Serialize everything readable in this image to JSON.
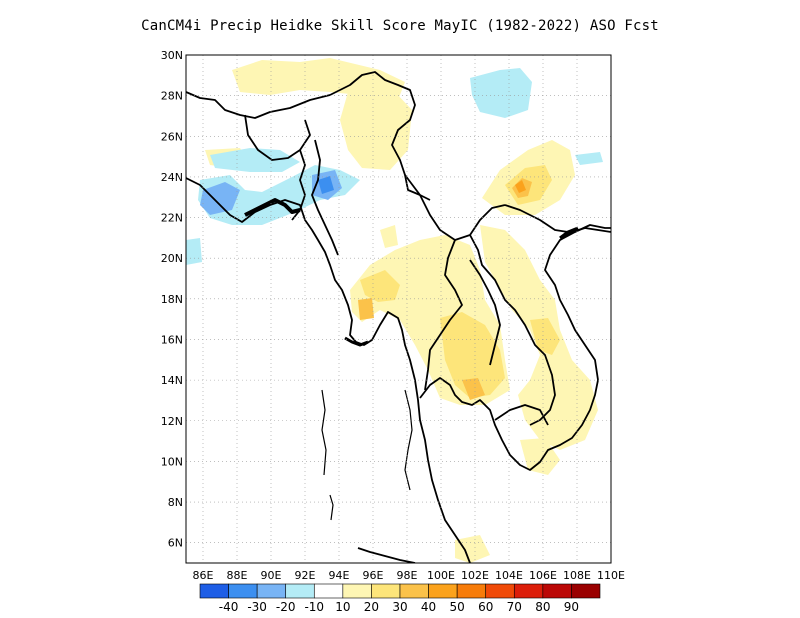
{
  "title": "CanCM4i Precip Heidke Skill Score MayIC (1982-2022) ASO Fcst",
  "map": {
    "lon_range": [
      85,
      110
    ],
    "lat_range": [
      5,
      30
    ],
    "lat_ticks": [
      "30N",
      "28N",
      "26N",
      "24N",
      "22N",
      "20N",
      "18N",
      "16N",
      "14N",
      "12N",
      "10N",
      "8N",
      "6N"
    ],
    "lon_ticks": [
      "86E",
      "88E",
      "90E",
      "92E",
      "94E",
      "96E",
      "98E",
      "100E",
      "102E",
      "104E",
      "106E",
      "108E",
      "110E"
    ],
    "grid": true,
    "land_color": "#ffffff"
  },
  "colorbar": {
    "colors": [
      "#1e5ee6",
      "#3c8ff0",
      "#78b4f5",
      "#b4ecf6",
      "#ffffff",
      "#fef6b4",
      "#fde57a",
      "#fbc24a",
      "#fba21c",
      "#f77c0a",
      "#f04a08",
      "#dc1e0a",
      "#bb0806",
      "#9a0000"
    ],
    "labels": [
      "-40",
      "-30",
      "-20",
      "-10",
      "10",
      "20",
      "30",
      "40",
      "50",
      "60",
      "70",
      "80",
      "90"
    ]
  }
}
